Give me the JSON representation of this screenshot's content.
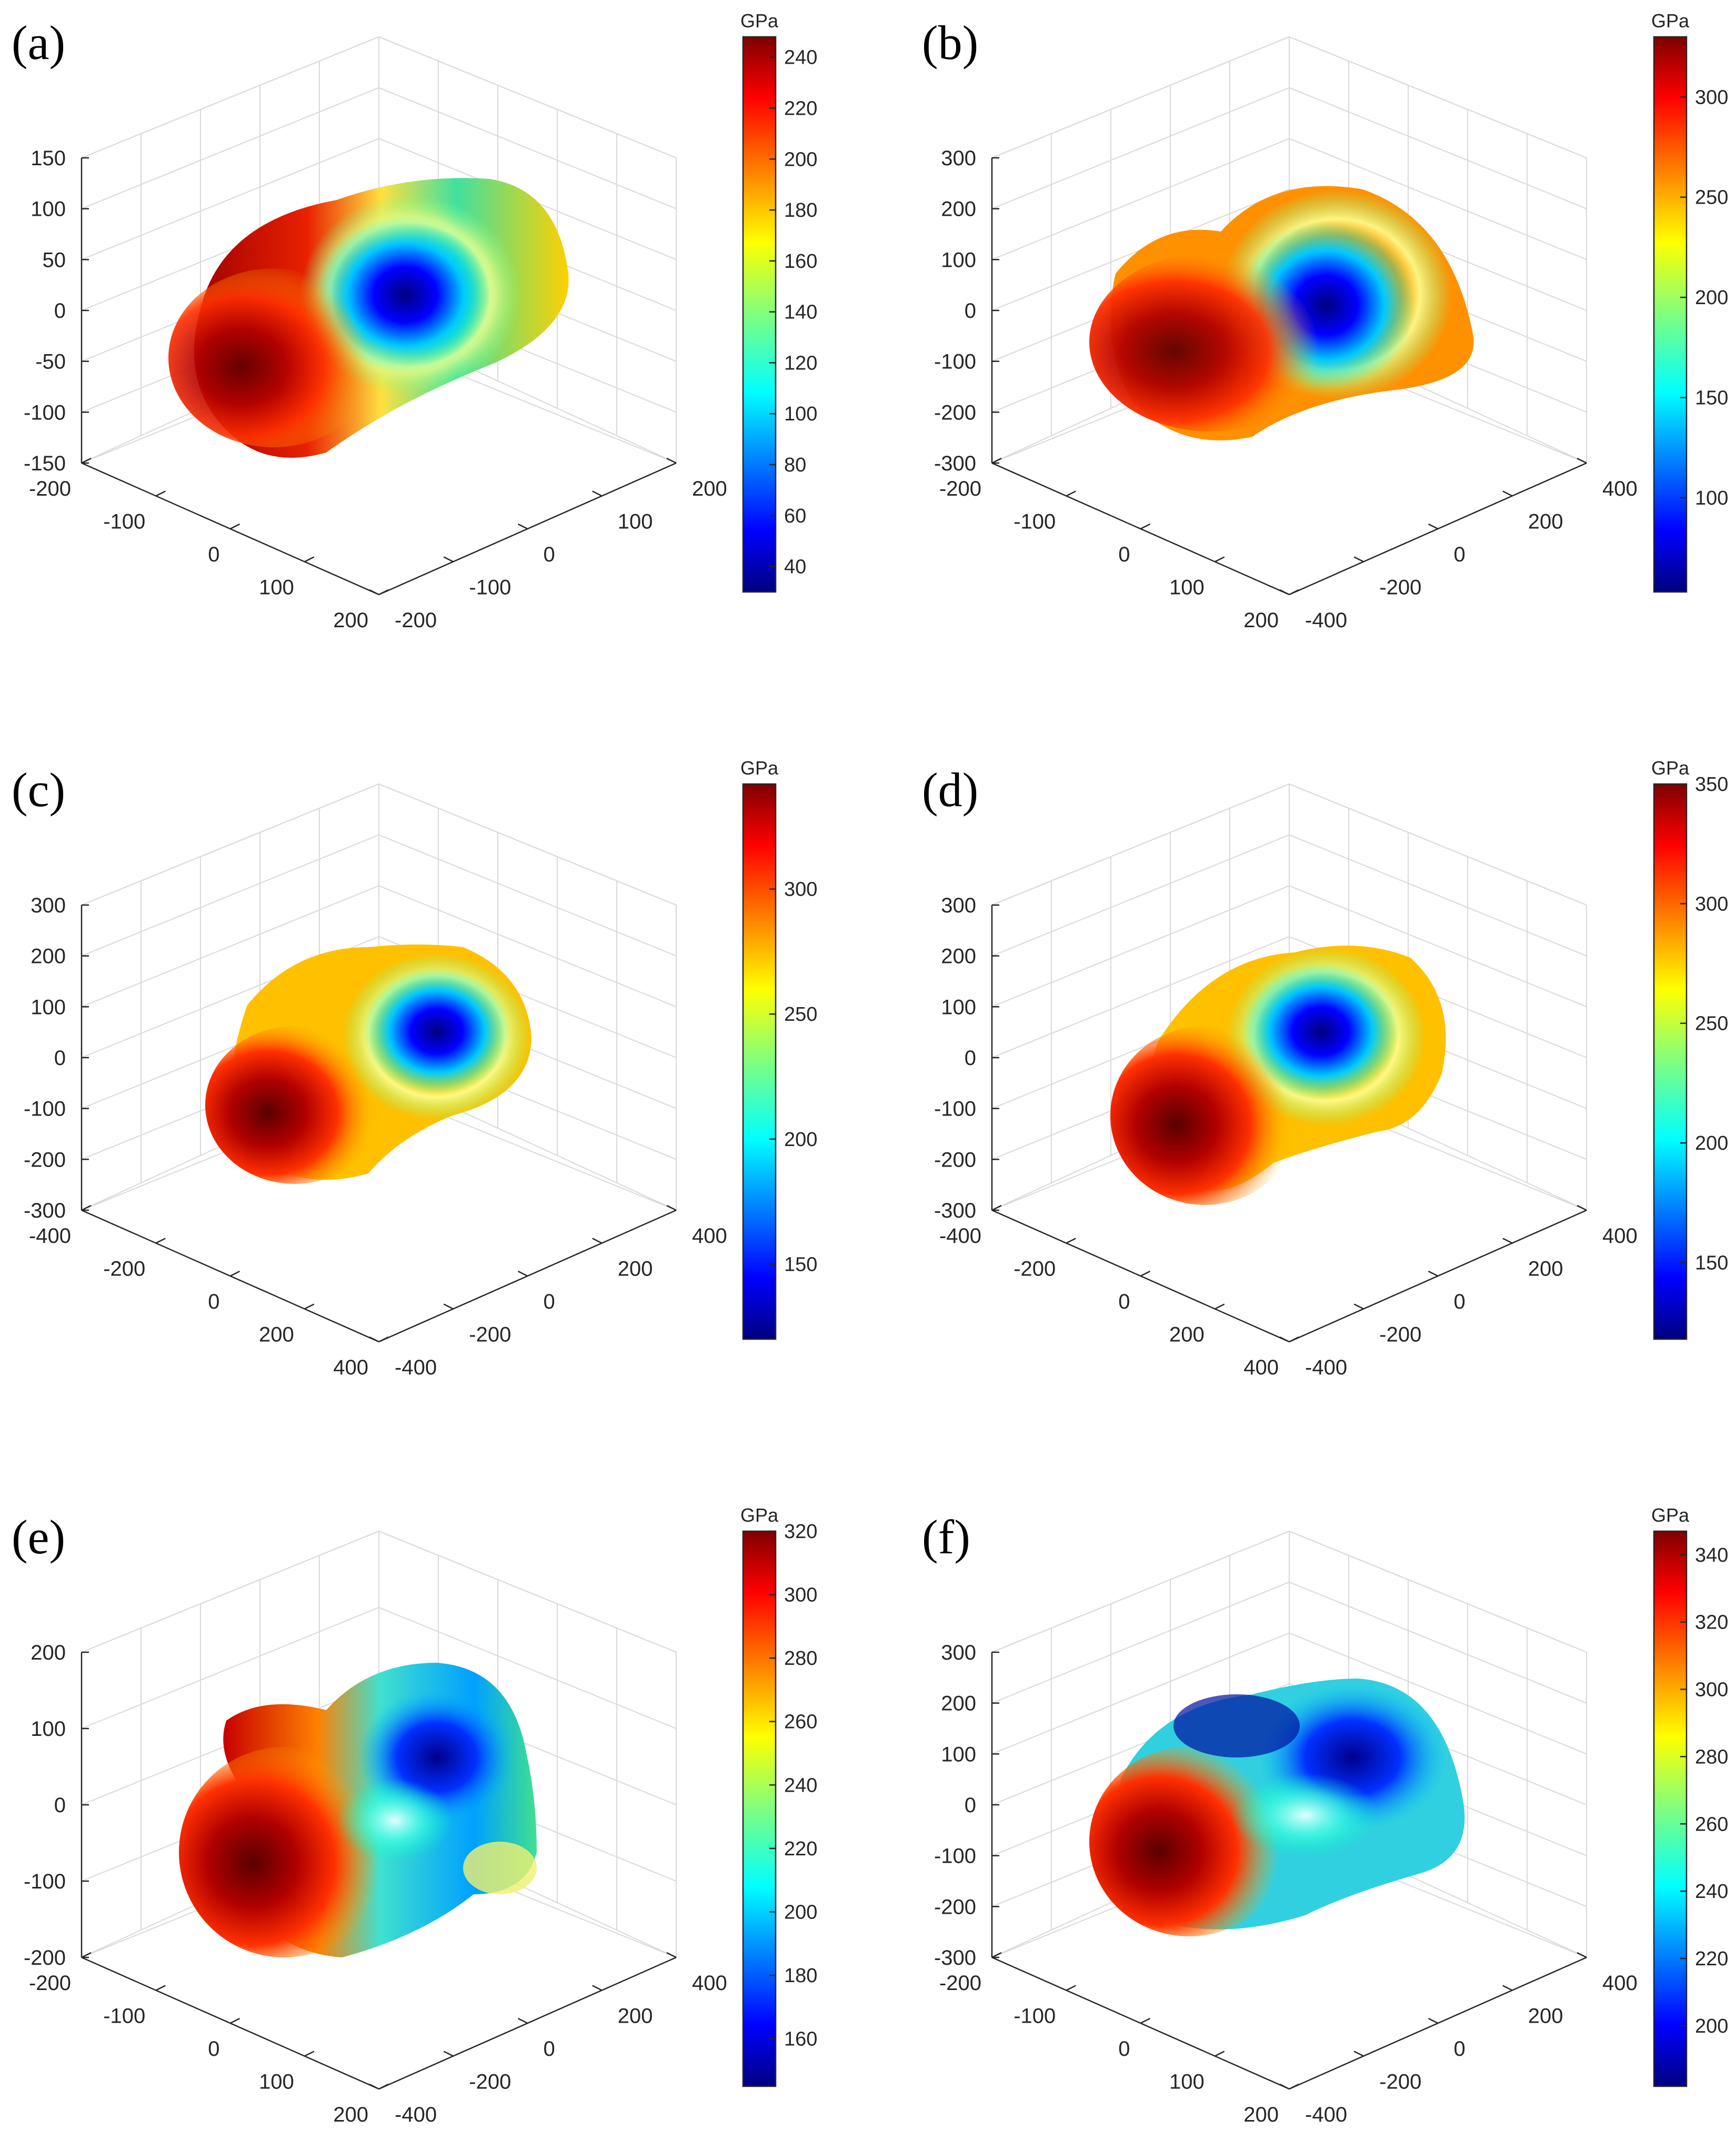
{
  "figure": {
    "description_label": "Six 3D Young's modulus surfaces with colorbars",
    "colormap": [
      "#00007f",
      "#0000ff",
      "#007fff",
      "#00ffff",
      "#7fff7f",
      "#ffff00",
      "#ff7f00",
      "#ff0000",
      "#7f0000"
    ]
  },
  "chart_data": [
    {
      "type": "surface3d",
      "label": "(a)",
      "z_ticks": [
        "150",
        "100",
        "50",
        "0",
        "-50",
        "-100",
        "-150"
      ],
      "x_ticks": [
        "-200",
        "-100",
        "0",
        "100",
        "200"
      ],
      "y_ticks": [
        "-200",
        "-100",
        "0",
        "100",
        "200"
      ],
      "colorbar": {
        "unit": "GPa",
        "min": 30,
        "max": 248,
        "ticks": [
          40,
          60,
          80,
          100,
          120,
          140,
          160,
          180,
          200,
          220,
          240
        ]
      }
    },
    {
      "type": "surface3d",
      "label": "(b)",
      "z_ticks": [
        "300",
        "200",
        "100",
        "0",
        "-100",
        "-200",
        "-300"
      ],
      "x_ticks": [
        "-200",
        "-100",
        "0",
        "100",
        "200"
      ],
      "y_ticks": [
        "-400",
        "-200",
        "0",
        "200",
        "400"
      ],
      "colorbar": {
        "unit": "GPa",
        "min": 53,
        "max": 330,
        "ticks": [
          100,
          150,
          200,
          250,
          300
        ]
      }
    },
    {
      "type": "surface3d",
      "label": "(c)",
      "z_ticks": [
        "300",
        "200",
        "100",
        "0",
        "-100",
        "-200",
        "-300"
      ],
      "x_ticks": [
        "-400",
        "-200",
        "0",
        "200",
        "400"
      ],
      "y_ticks": [
        "-400",
        "-200",
        "0",
        "200",
        "400"
      ],
      "colorbar": {
        "unit": "GPa",
        "min": 120,
        "max": 342,
        "ticks": [
          150,
          200,
          250,
          300
        ]
      }
    },
    {
      "type": "surface3d",
      "label": "(d)",
      "z_ticks": [
        "300",
        "200",
        "100",
        "0",
        "-100",
        "-200",
        "-300"
      ],
      "x_ticks": [
        "-400",
        "-200",
        "0",
        "200",
        "400"
      ],
      "y_ticks": [
        "-400",
        "-200",
        "0",
        "200",
        "400"
      ],
      "colorbar": {
        "unit": "GPa",
        "min": 118,
        "max": 350,
        "ticks": [
          150,
          200,
          250,
          300,
          350
        ]
      }
    },
    {
      "type": "surface3d",
      "label": "(e)",
      "z_ticks": [
        "200",
        "100",
        "0",
        "-100",
        "-200"
      ],
      "x_ticks": [
        "-200",
        "-100",
        "0",
        "100",
        "200"
      ],
      "y_ticks": [
        "-400",
        "-200",
        "0",
        "200",
        "400"
      ],
      "colorbar": {
        "unit": "GPa",
        "min": 145,
        "max": 320,
        "ticks": [
          160,
          180,
          200,
          220,
          240,
          260,
          280,
          300,
          320
        ]
      }
    },
    {
      "type": "surface3d",
      "label": "(f)",
      "z_ticks": [
        "300",
        "200",
        "100",
        "0",
        "-100",
        "-200",
        "-300"
      ],
      "x_ticks": [
        "-200",
        "-100",
        "0",
        "100",
        "200"
      ],
      "y_ticks": [
        "-400",
        "-200",
        "0",
        "200",
        "400"
      ],
      "colorbar": {
        "unit": "GPa",
        "min": 182,
        "max": 347,
        "ticks": [
          200,
          220,
          240,
          260,
          280,
          300,
          320,
          340
        ]
      }
    }
  ]
}
